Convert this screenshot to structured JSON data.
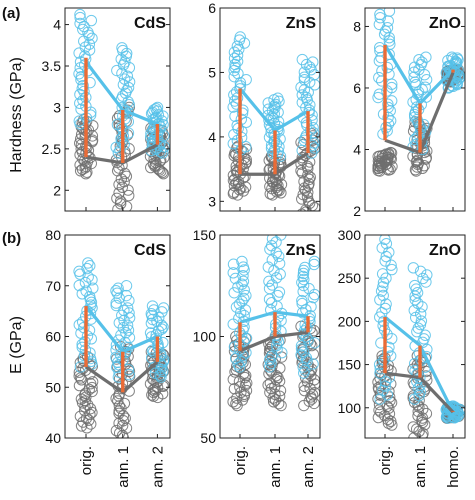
{
  "figure": {
    "panel_letters": [
      "(a)",
      "(b)"
    ],
    "row_ylabels": [
      "Hardness (GPa)",
      "E (GPa)"
    ]
  },
  "colors": {
    "cyan": "#56c1e9",
    "gray": "#6e6e6e",
    "orange": "#ea6b36"
  },
  "chart_data": [
    {
      "type": "scatter",
      "title": "CdS",
      "ylabel": "Hardness (GPa)",
      "ylim": [
        1.75,
        4.2
      ],
      "yticks": [
        2,
        2.5,
        3,
        3.5,
        4
      ],
      "categories": [
        "orig.",
        "ann. 1",
        "ann. 2"
      ],
      "series": [
        {
          "color": "cyan",
          "line": [
            3.55,
            2.97,
            2.8
          ],
          "points": [
            [
              2.8,
              4.12
            ],
            [
              2.45,
              3.72
            ],
            [
              2.45,
              3.0
            ]
          ]
        },
        {
          "color": "gray",
          "line": [
            2.4,
            2.33,
            2.55
          ],
          "points": [
            [
              2.2,
              2.85
            ],
            [
              1.77,
              3.0
            ],
            [
              2.2,
              2.75
            ]
          ]
        }
      ],
      "bars": [
        [
          2.4,
          3.6
        ],
        [
          2.33,
          2.97
        ],
        [
          2.55,
          2.8
        ]
      ]
    },
    {
      "type": "scatter",
      "title": "ZnS",
      "ylabel": "",
      "ylim": [
        2.85,
        6.0
      ],
      "yticks": [
        3,
        4,
        5,
        6
      ],
      "categories": [
        "orig.",
        "ann. 1",
        "ann. 2"
      ],
      "series": [
        {
          "color": "cyan",
          "line": [
            4.75,
            4.1,
            4.4
          ],
          "points": [
            [
              3.8,
              5.55
            ],
            [
              3.7,
              4.6
            ],
            [
              3.75,
              5.2
            ]
          ]
        },
        {
          "color": "gray",
          "line": [
            3.42,
            3.42,
            3.75
          ],
          "points": [
            [
              3.1,
              3.85
            ],
            [
              3.1,
              3.7
            ],
            [
              2.8,
              4.05
            ]
          ]
        }
      ],
      "bars": [
        [
          3.42,
          4.75
        ],
        [
          3.42,
          4.1
        ],
        [
          3.75,
          4.4
        ]
      ]
    },
    {
      "type": "scatter",
      "title": "ZnO",
      "ylabel": "",
      "ylim": [
        2,
        8.6
      ],
      "yticks": [
        2,
        4,
        6,
        8
      ],
      "categories": [
        "orig.",
        "ann. 1",
        "homo."
      ],
      "series": [
        {
          "color": "cyan",
          "line": [
            7.4,
            5.5,
            6.6
          ],
          "points": [
            [
              4.5,
              8.5
            ],
            [
              4.0,
              7.0
            ],
            [
              6.0,
              7.0
            ]
          ]
        },
        {
          "color": "gray",
          "line": [
            4.3,
            3.9,
            6.5
          ],
          "points": [
            [
              3.3,
              3.9
            ],
            [
              3.3,
              4.9
            ],
            [
              6.2,
              6.6
            ]
          ]
        }
      ],
      "bars": [
        [
          4.3,
          7.4
        ],
        [
          3.9,
          5.5
        ],
        [
          6.5,
          6.6
        ]
      ]
    },
    {
      "type": "scatter",
      "title": "CdS",
      "ylabel": "E (GPa)",
      "ylim": [
        40,
        80
      ],
      "yticks": [
        40,
        50,
        60,
        70,
        80
      ],
      "categories": [
        "orig.",
        "ann. 1",
        "ann. 2"
      ],
      "series": [
        {
          "color": "cyan",
          "line": [
            66,
            57,
            60
          ],
          "points": [
            [
              54,
              74.5
            ],
            [
              52,
              70
            ],
            [
              52,
              66
            ]
          ]
        },
        {
          "color": "gray",
          "line": [
            54,
            49,
            55
          ],
          "points": [
            [
              42,
              56
            ],
            [
              40,
              58
            ],
            [
              48,
              57
            ]
          ]
        }
      ],
      "bars": [
        [
          54,
          66
        ],
        [
          49,
          57
        ],
        [
          55,
          60
        ]
      ]
    },
    {
      "type": "scatter",
      "title": "ZnS",
      "ylabel": "",
      "ylim": [
        50,
        150
      ],
      "yticks": [
        50,
        100,
        150
      ],
      "categories": [
        "orig.",
        "ann. 1",
        "ann. 2"
      ],
      "series": [
        {
          "color": "cyan",
          "line": [
            107,
            112,
            110
          ],
          "points": [
            [
              85,
              137
            ],
            [
              85,
              150
            ],
            [
              82,
              137
            ]
          ]
        },
        {
          "color": "gray",
          "line": [
            93,
            100,
            102
          ],
          "points": [
            [
              66,
              100
            ],
            [
              66,
              100
            ],
            [
              66,
              105
            ]
          ]
        }
      ],
      "bars": [
        [
          93,
          107
        ],
        [
          100,
          112
        ],
        [
          102,
          110
        ]
      ]
    },
    {
      "type": "scatter",
      "title": "ZnO",
      "ylabel": "",
      "ylim": [
        65,
        300
      ],
      "yticks": [
        100,
        150,
        200,
        250,
        300
      ],
      "categories": [
        "orig.",
        "ann. 1",
        "homo."
      ],
      "series": [
        {
          "color": "cyan",
          "line": [
            205,
            172,
            95
          ],
          "points": [
            [
              110,
              295
            ],
            [
              110,
              262
            ],
            [
              88,
              102
            ]
          ]
        },
        {
          "color": "gray",
          "line": [
            140,
            135,
            95
          ],
          "points": [
            [
              80,
              160
            ],
            [
              65,
              160
            ],
            [
              88,
              100
            ]
          ]
        }
      ],
      "bars": [
        [
          140,
          205
        ],
        [
          135,
          172
        ],
        [
          95,
          96
        ]
      ]
    }
  ]
}
